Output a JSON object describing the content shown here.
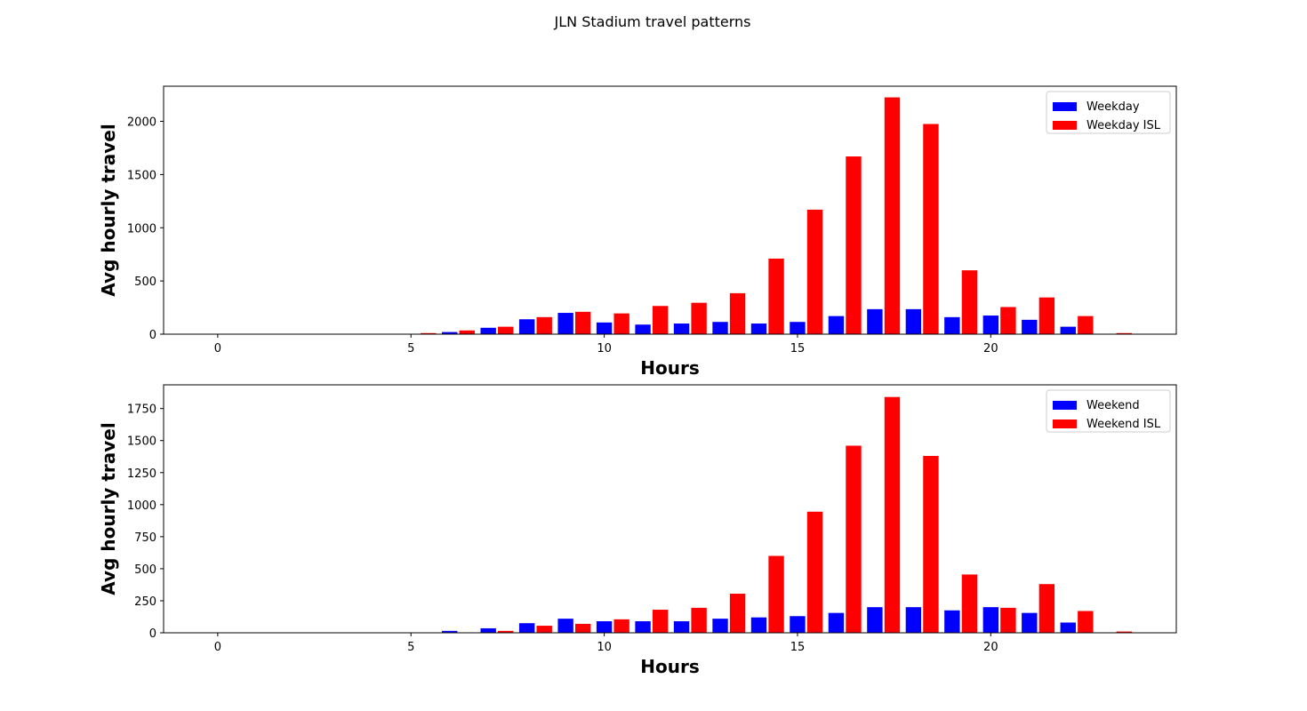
{
  "figure": {
    "title": "JLN Stadium travel patterns"
  },
  "chart_data": [
    {
      "type": "bar",
      "xlabel": "Hours",
      "ylabel": "Avg hourly travel",
      "xlim": [
        -1.4,
        24.8
      ],
      "ylim": [
        0,
        2330
      ],
      "xticks": [
        0,
        5,
        10,
        15,
        20
      ],
      "yticks": [
        0,
        500,
        1000,
        1500,
        2000
      ],
      "x": [
        0,
        1,
        2,
        3,
        4,
        5,
        6,
        7,
        8,
        9,
        10,
        11,
        12,
        13,
        14,
        15,
        16,
        17,
        18,
        19,
        20,
        21,
        22,
        23
      ],
      "legend": "top-right",
      "series": [
        {
          "name": "Weekday",
          "color": "#0000ff",
          "offset": 0,
          "values": [
            0,
            0,
            0,
            0,
            0,
            0,
            20,
            60,
            140,
            200,
            110,
            90,
            100,
            115,
            100,
            115,
            170,
            235,
            235,
            160,
            175,
            135,
            70,
            0
          ]
        },
        {
          "name": "Weekday ISL",
          "color": "#ff0000",
          "offset": 0.45,
          "values": [
            0,
            0,
            0,
            0,
            0,
            10,
            35,
            70,
            160,
            210,
            195,
            265,
            295,
            385,
            710,
            1170,
            1670,
            2225,
            1975,
            600,
            255,
            345,
            170,
            10
          ]
        }
      ]
    },
    {
      "type": "bar",
      "xlabel": "Hours",
      "ylabel": "Avg hourly travel",
      "xlim": [
        -1.4,
        24.8
      ],
      "ylim": [
        0,
        1935
      ],
      "xticks": [
        0,
        5,
        10,
        15,
        20
      ],
      "yticks": [
        0,
        250,
        500,
        750,
        1000,
        1250,
        1500,
        1750
      ],
      "x": [
        0,
        1,
        2,
        3,
        4,
        5,
        6,
        7,
        8,
        9,
        10,
        11,
        12,
        13,
        14,
        15,
        16,
        17,
        18,
        19,
        20,
        21,
        22,
        23
      ],
      "legend": "top-right",
      "series": [
        {
          "name": "Weekend",
          "color": "#0000ff",
          "offset": 0,
          "values": [
            0,
            0,
            0,
            0,
            0,
            0,
            15,
            35,
            75,
            110,
            90,
            90,
            90,
            110,
            120,
            130,
            155,
            200,
            200,
            175,
            200,
            155,
            80,
            0
          ]
        },
        {
          "name": "Weekend ISL",
          "color": "#ff0000",
          "offset": 0.45,
          "values": [
            0,
            0,
            0,
            0,
            0,
            0,
            0,
            15,
            55,
            70,
            105,
            180,
            195,
            305,
            600,
            945,
            1460,
            1840,
            1380,
            455,
            195,
            380,
            170,
            10
          ]
        }
      ]
    }
  ]
}
